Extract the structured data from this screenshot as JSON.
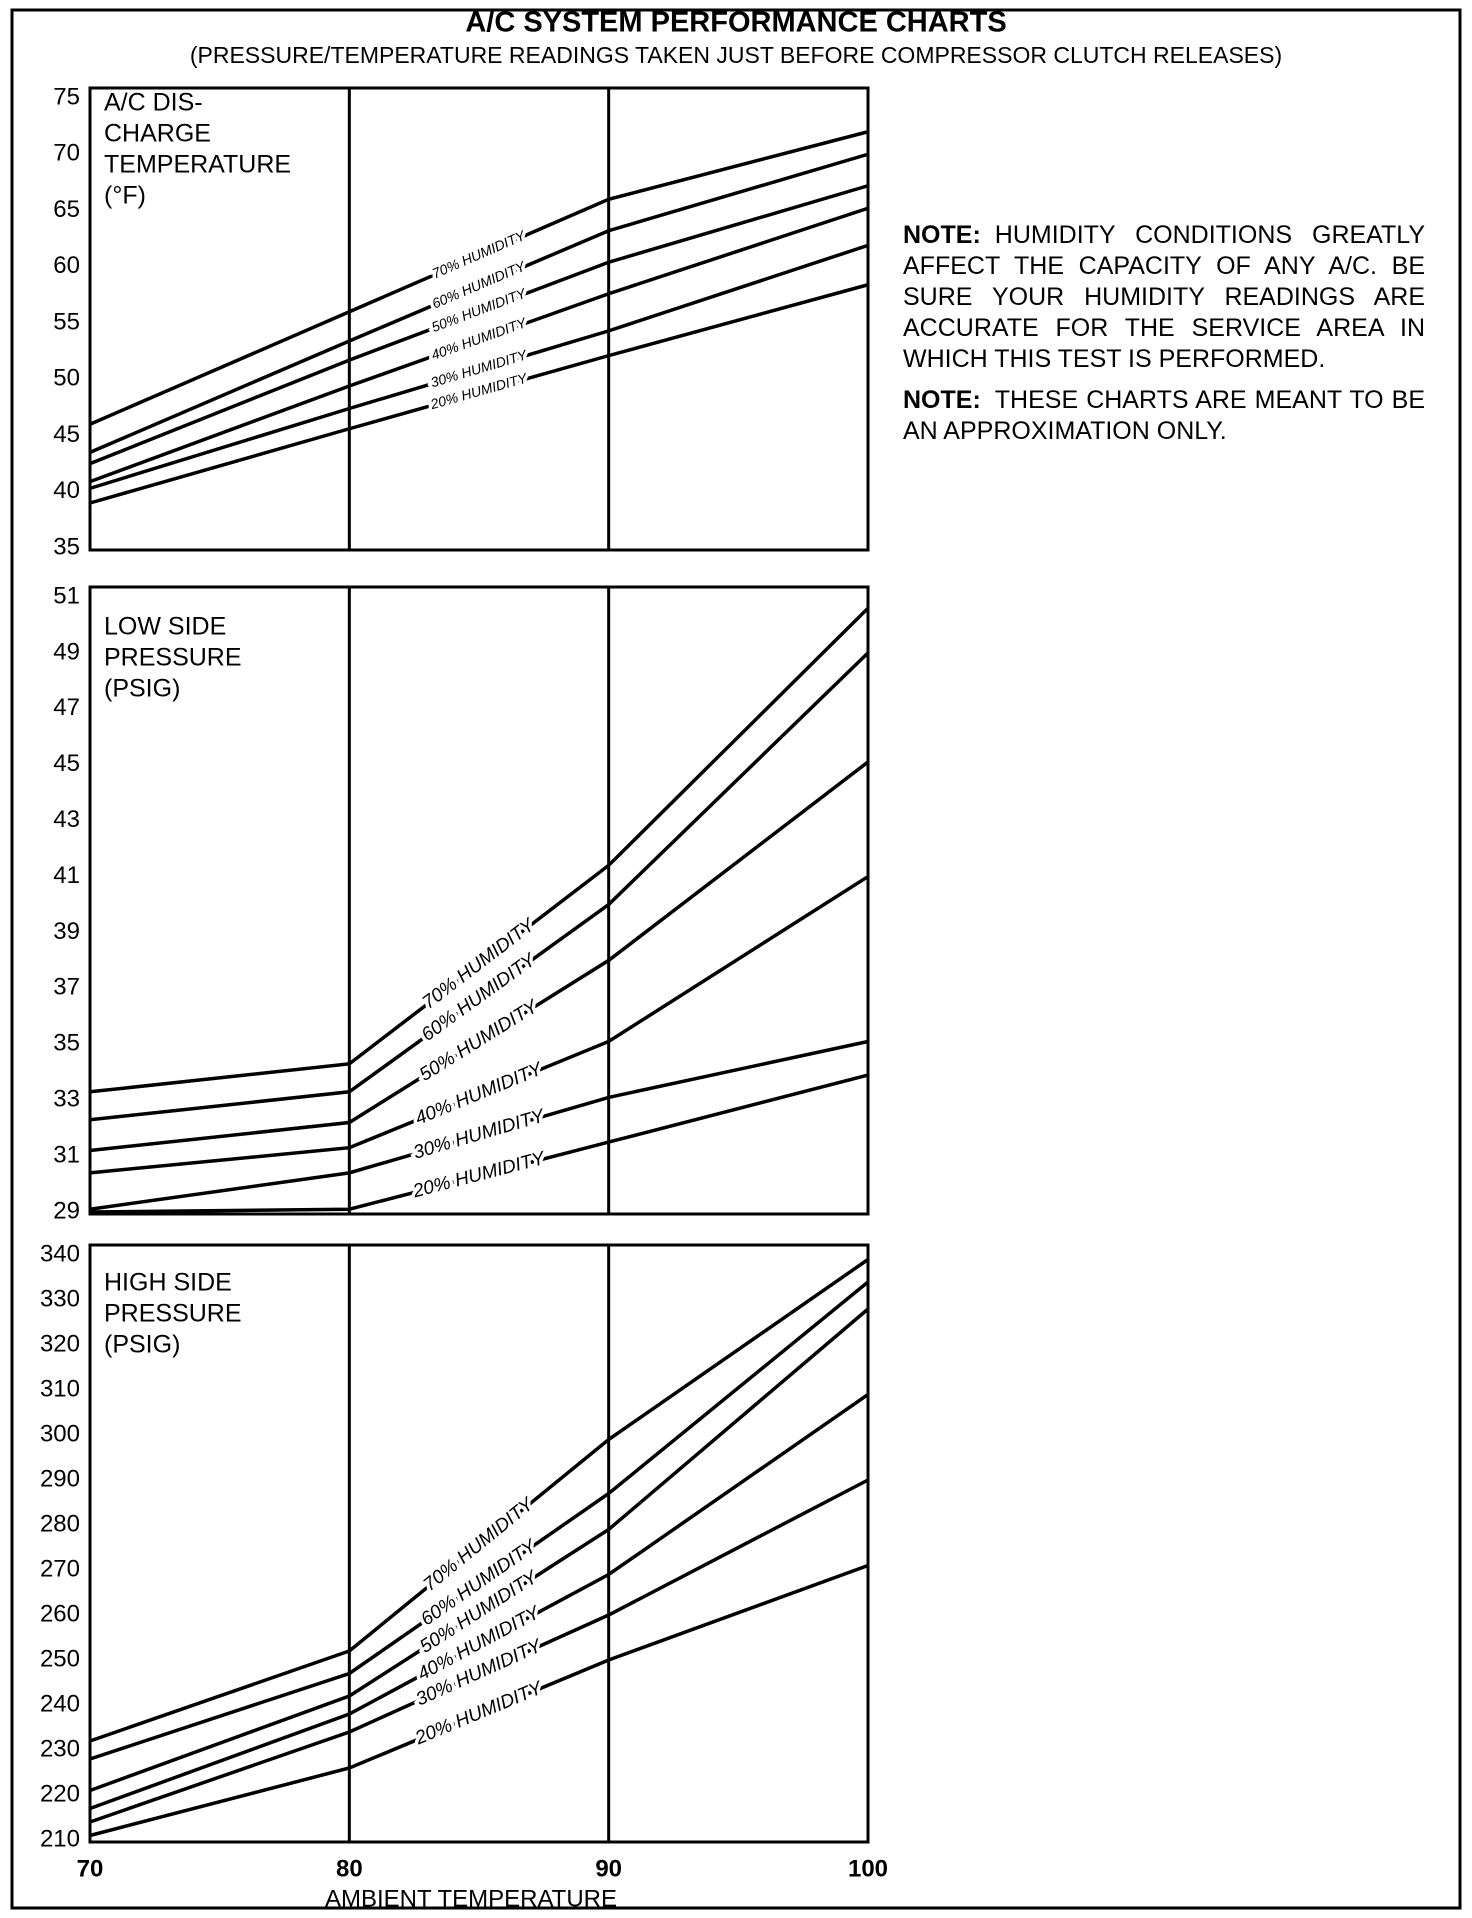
{
  "title": "A/C SYSTEM PERFORMANCE CHARTS",
  "subtitle": "(PRESSURE/TEMPERATURE READINGS TAKEN JUST BEFORE COMPRESSOR CLUTCH RELEASES)",
  "notes": [
    {
      "label": "NOTE:",
      "text": "HUMIDITY CONDITIONS GREATLY AFFECT THE CAPACITY OF ANY A/C. BE SURE YOUR HUMIDITY READINGS ARE ACCURATE FOR THE SERVICE AREA IN WHICH THIS TEST IS PERFORMED."
    },
    {
      "label": "NOTE:",
      "text": "THESE CHARTS ARE MEANT TO BE AN APPROXIMATION ONLY."
    }
  ],
  "chart_data": [
    {
      "type": "line",
      "ylabel": [
        "A/C DIS-",
        "CHARGE",
        "TEMPERATURE",
        "(°F)"
      ],
      "x": [
        70,
        80,
        90,
        100
      ],
      "xlim": [
        70,
        100
      ],
      "xticks": [
        70,
        80,
        90,
        100
      ],
      "ylim": [
        35,
        75
      ],
      "yticks": [
        35,
        40,
        45,
        50,
        55,
        60,
        65,
        70,
        75
      ],
      "color": "#000000",
      "series": [
        {
          "name": "70% HUMIDITY",
          "values": [
            46,
            56,
            66,
            72
          ]
        },
        {
          "name": "60% HUMIDITY",
          "values": [
            43.5,
            53.4,
            63.2,
            70
          ]
        },
        {
          "name": "50% HUMIDITY",
          "values": [
            42.5,
            51.7,
            60.4,
            67.2
          ]
        },
        {
          "name": "40% HUMIDITY",
          "values": [
            40.9,
            49.4,
            57.6,
            65.2
          ]
        },
        {
          "name": "30% HUMIDITY",
          "values": [
            40.3,
            47.4,
            54.3,
            61.9
          ]
        },
        {
          "name": "20% HUMIDITY",
          "values": [
            39,
            45.6,
            52.1,
            58.4
          ]
        }
      ]
    },
    {
      "type": "line",
      "ylabel": [
        "LOW SIDE",
        "PRESSURE",
        "(PSIG)"
      ],
      "x": [
        70,
        80,
        90,
        100
      ],
      "xlim": [
        70,
        100
      ],
      "xticks": [
        70,
        80,
        90,
        100
      ],
      "ylim": [
        29,
        51
      ],
      "yticks": [
        29,
        31,
        33,
        35,
        37,
        39,
        41,
        43,
        45,
        47,
        49,
        51
      ],
      "color": "#000000",
      "series": [
        {
          "name": "70% HUMIDITY",
          "values": [
            33.3,
            34.3,
            41.4,
            50.6
          ]
        },
        {
          "name": "60% HUMIDITY",
          "values": [
            32.3,
            33.3,
            40,
            49
          ]
        },
        {
          "name": "50% HUMIDITY",
          "values": [
            31.2,
            32.2,
            38,
            45.1
          ]
        },
        {
          "name": "40% HUMIDITY",
          "values": [
            30.4,
            31.3,
            35.1,
            41
          ]
        },
        {
          "name": "30% HUMIDITY",
          "values": [
            29.1,
            30.4,
            33.1,
            35.1
          ]
        },
        {
          "name": "20% HUMIDITY",
          "values": [
            29,
            29.1,
            31.5,
            33.9
          ]
        }
      ]
    },
    {
      "type": "line",
      "ylabel": [
        "HIGH SIDE",
        "PRESSURE",
        "(PSIG)"
      ],
      "xlabel": "AMBIENT TEMPERATURE",
      "xtick_labels": true,
      "x": [
        70,
        80,
        90,
        100
      ],
      "xlim": [
        70,
        100
      ],
      "xticks": [
        70,
        80,
        90,
        100
      ],
      "ylim": [
        210,
        340
      ],
      "yticks": [
        210,
        220,
        230,
        240,
        250,
        260,
        270,
        280,
        290,
        300,
        310,
        320,
        330,
        340
      ],
      "color": "#000000",
      "series": [
        {
          "name": "70% HUMIDITY",
          "values": [
            232,
            252,
            299,
            339
          ]
        },
        {
          "name": "60% HUMIDITY",
          "values": [
            228,
            247,
            287,
            334
          ]
        },
        {
          "name": "50% HUMIDITY",
          "values": [
            221,
            242,
            279,
            328
          ]
        },
        {
          "name": "40% HUMIDITY",
          "values": [
            217,
            238,
            269,
            309
          ]
        },
        {
          "name": "30% HUMIDITY",
          "values": [
            214,
            234,
            260,
            290
          ]
        },
        {
          "name": "20% HUMIDITY",
          "values": [
            211,
            226,
            250,
            271
          ]
        }
      ]
    }
  ]
}
